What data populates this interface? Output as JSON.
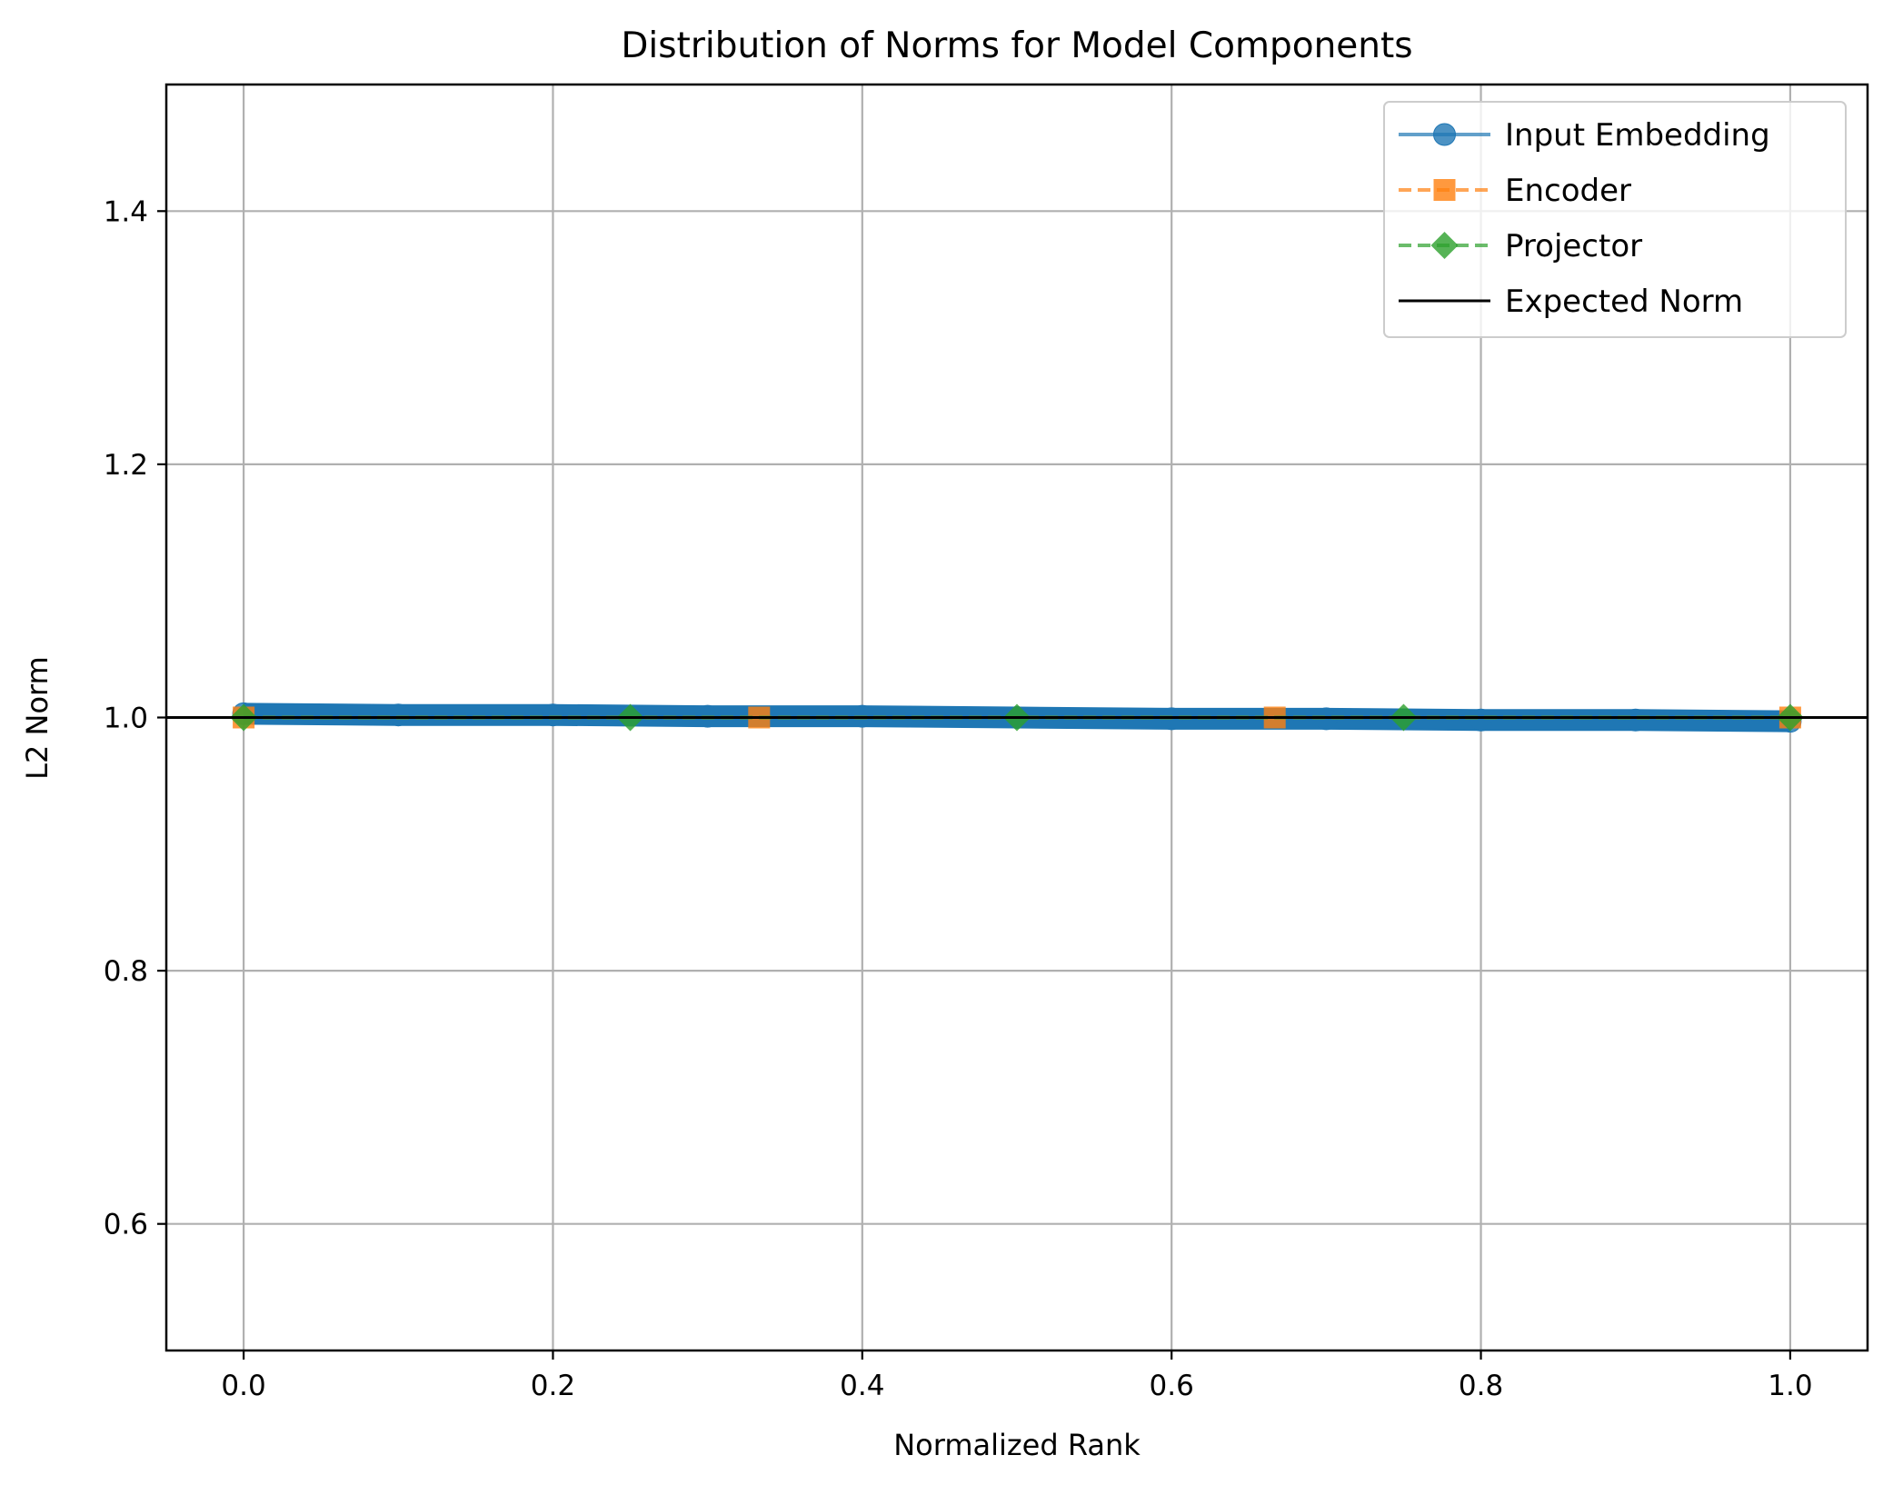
{
  "chart_data": {
    "type": "line",
    "title": "Distribution of Norms for Model Components",
    "xlabel": "Normalized Rank",
    "ylabel": "L2 Norm",
    "xlim": [
      -0.05,
      1.05
    ],
    "ylim": [
      0.5,
      1.5
    ],
    "xticks": [
      0.0,
      0.2,
      0.4,
      0.6,
      0.8,
      1.0
    ],
    "xtick_labels": [
      "0.0",
      "0.2",
      "0.4",
      "0.6",
      "0.8",
      "1.0"
    ],
    "yticks": [
      0.6,
      0.8,
      1.0,
      1.2,
      1.4
    ],
    "ytick_labels": [
      "0.6",
      "0.8",
      "1.0",
      "1.2",
      "1.4"
    ],
    "grid": true,
    "legend_position": "top-right",
    "series": [
      {
        "name": "Input Embedding",
        "color": "#1f77b4",
        "marker": "circle",
        "linestyle": "solid",
        "x": [
          0.0,
          0.1,
          0.2,
          0.3,
          0.4,
          0.5,
          0.6,
          0.7,
          0.8,
          0.9,
          1.0
        ],
        "y": [
          1.003,
          1.002,
          1.002,
          1.001,
          1.001,
          1.0,
          0.999,
          0.999,
          0.998,
          0.998,
          0.997
        ]
      },
      {
        "name": "Encoder",
        "color": "#ff7f0e",
        "marker": "square",
        "linestyle": "dashed",
        "x": [
          0.0,
          0.3333,
          0.6667,
          1.0
        ],
        "y": [
          1.0,
          1.0,
          1.0,
          1.0
        ]
      },
      {
        "name": "Projector",
        "color": "#2ca02c",
        "marker": "diamond",
        "linestyle": "dashed",
        "x": [
          0.0,
          0.25,
          0.5,
          0.75,
          1.0
        ],
        "y": [
          1.0,
          1.0,
          1.0,
          1.0,
          1.0
        ]
      },
      {
        "name": "Expected Norm",
        "color": "#000000",
        "marker": "none",
        "linestyle": "solid",
        "hline": 1.0
      }
    ]
  }
}
